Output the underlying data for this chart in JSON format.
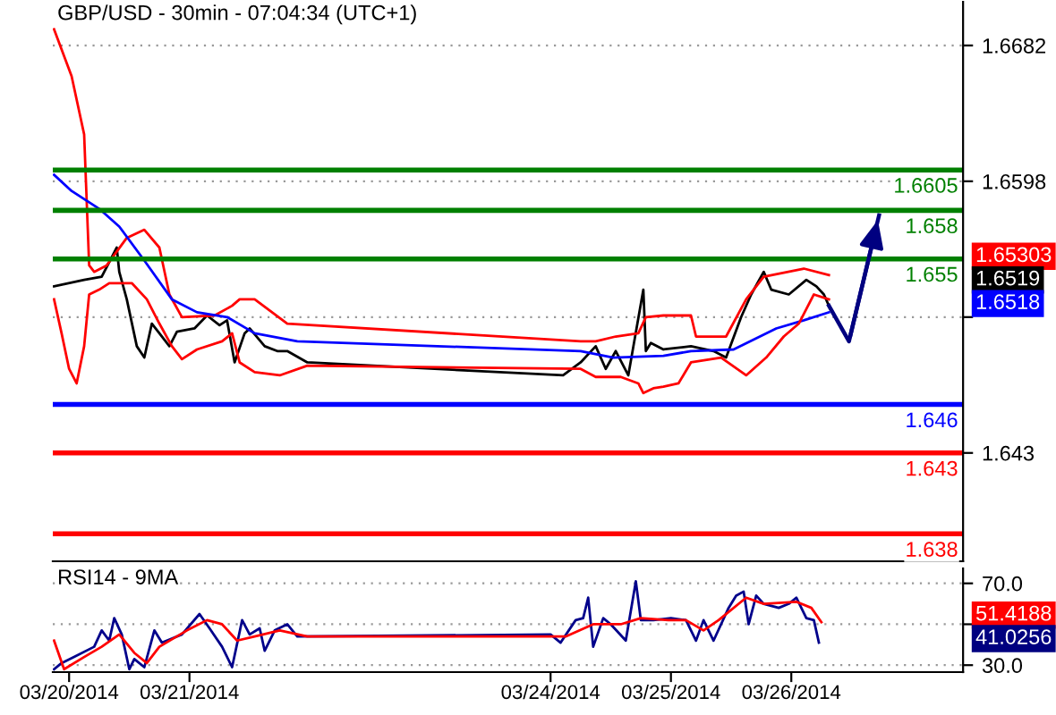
{
  "chart_data": [
    {
      "type": "line",
      "title": "GBP/USD - 30min - 07:04:34 (UTC+1)",
      "tick_labels": "y",
      "grid": "y",
      "xlim": [
        "2014-03-19T20:45",
        "2014-03-27T10:15"
      ],
      "ylim": [
        1.6363,
        1.6709
      ],
      "yticks": [
        1.6682,
        1.6598,
        {
          "value": 1.6514,
          "label": null
        },
        1.643
      ],
      "series": [
        {
          "color": "#000000",
          "x": [
            "2014-03-19T21:00",
            "2014-03-20T03:00",
            "2014-03-20T06:30",
            "2014-03-20T09:30",
            "2014-03-20T10:00",
            "2014-03-20T11:30",
            "2014-03-20T13:30",
            "2014-03-20T15:00",
            "2014-03-20T16:30",
            "2014-03-20T18:00",
            "2014-03-20T20:00",
            "2014-03-20T21:30",
            "2014-03-21T01:00",
            "2014-03-21T03:30",
            "2014-03-21T06:00",
            "2014-03-21T07:30",
            "2014-03-21T09:00",
            "2014-03-21T11:00",
            "2014-03-21T12:00",
            "2014-03-21T15:00",
            "2014-03-21T17:30",
            "2014-03-21T19:30",
            "2014-03-21T23:30",
            "2014-03-24T02:30",
            "2014-03-24T06:00",
            "2014-03-24T09:00",
            "2014-03-24T11:00",
            "2014-03-24T13:00",
            "2014-03-24T15:30",
            "2014-03-24T18:30",
            "2014-03-24T19:00",
            "2014-03-24T20:00",
            "2014-03-24T22:30",
            "2014-03-25T04:00",
            "2014-03-25T08:30",
            "2014-03-25T11:00",
            "2014-03-25T14:00",
            "2014-03-25T16:00",
            "2014-03-25T18:30",
            "2014-03-25T20:00",
            "2014-03-25T23:30",
            "2014-03-26T03:00",
            "2014-03-26T05:00",
            "2014-03-26T06:30",
            "2014-03-26T07:30"
          ],
          "values": [
            1.6533,
            1.6537,
            1.6539,
            1.6557,
            1.6542,
            1.6525,
            1.6496,
            1.6489,
            1.651,
            1.6504,
            1.6496,
            1.6505,
            1.6507,
            1.6515,
            1.6509,
            1.6512,
            1.6486,
            1.6504,
            1.6507,
            1.6496,
            1.6493,
            1.6493,
            1.6486,
            1.6478,
            1.6486,
            1.6496,
            1.6482,
            1.6493,
            1.6478,
            1.6531,
            1.6493,
            1.6498,
            1.6494,
            1.6496,
            1.6493,
            1.6489,
            1.6514,
            1.6528,
            1.6542,
            1.6531,
            1.6528,
            1.6537,
            1.6533,
            1.6528,
            1.6521
          ]
        },
        {
          "color": "#ff0000",
          "x": [
            "2014-03-19T21:00",
            "2014-03-20T00:30",
            "2014-03-20T03:00",
            "2014-03-20T04:00",
            "2014-03-20T05:00",
            "2014-03-20T07:30",
            "2014-03-20T11:30",
            "2014-03-20T15:00",
            "2014-03-20T18:00",
            "2014-03-20T20:00",
            "2014-03-20T22:30",
            "2014-03-21T05:00",
            "2014-03-21T08:30",
            "2014-03-21T10:00",
            "2014-03-21T13:00",
            "2014-03-21T19:30",
            "2014-03-24T06:00",
            "2014-03-24T09:00",
            "2014-03-24T13:00",
            "2014-03-24T17:30",
            "2014-03-24T19:00",
            "2014-03-24T22:30",
            "2014-03-25T04:00",
            "2014-03-25T05:00",
            "2014-03-25T11:00",
            "2014-03-25T15:00",
            "2014-03-25T18:30",
            "2014-03-26T02:30",
            "2014-03-26T07:30"
          ],
          "values": [
            1.6692,
            1.6663,
            1.6627,
            1.6546,
            1.6542,
            1.6546,
            1.6563,
            1.6568,
            1.6557,
            1.6528,
            1.6514,
            1.6515,
            1.6521,
            1.6525,
            1.6525,
            1.651,
            1.6499,
            1.6499,
            1.6502,
            1.6504,
            1.6514,
            1.6515,
            1.6515,
            1.6502,
            1.6502,
            1.6525,
            1.6539,
            1.6544,
            1.654
          ]
        },
        {
          "color": "#0000ff",
          "x": [
            "2014-03-19T21:00",
            "2014-03-20T00:30",
            "2014-03-20T06:00",
            "2014-03-20T10:00",
            "2014-03-20T15:00",
            "2014-03-20T20:30",
            "2014-03-21T01:30",
            "2014-03-21T07:30",
            "2014-03-21T13:00",
            "2014-03-21T21:30",
            "2014-03-24T06:00",
            "2014-03-24T12:30",
            "2014-03-24T22:30",
            "2014-03-25T04:00",
            "2014-03-25T12:30",
            "2014-03-25T21:00",
            "2014-03-26T02:30",
            "2014-03-26T07:30"
          ],
          "values": [
            1.6602,
            1.6592,
            1.6581,
            1.657,
            1.6549,
            1.6525,
            1.6517,
            1.6514,
            1.6504,
            1.6499,
            1.6493,
            1.6489,
            1.649,
            1.6493,
            1.6494,
            1.6507,
            1.6512,
            1.6517
          ]
        },
        {
          "color": "#ff0000",
          "x": [
            "2014-03-19T21:00",
            "2014-03-19T22:30",
            "2014-03-20T00:00",
            "2014-03-20T01:30",
            "2014-03-20T03:00",
            "2014-03-20T04:00",
            "2014-03-20T06:00",
            "2014-03-20T08:00",
            "2014-03-20T12:30",
            "2014-03-20T15:30",
            "2014-03-20T18:00",
            "2014-03-20T20:30",
            "2014-03-20T22:30",
            "2014-03-21T01:30",
            "2014-03-21T06:30",
            "2014-03-21T08:30",
            "2014-03-21T10:00",
            "2014-03-21T13:00",
            "2014-03-21T18:00",
            "2014-03-21T23:30",
            "2014-03-24T06:00",
            "2014-03-24T09:00",
            "2014-03-24T14:00",
            "2014-03-24T17:30",
            "2014-03-24T18:30",
            "2014-03-24T20:30",
            "2014-03-24T22:30",
            "2014-03-25T01:30",
            "2014-03-25T04:00",
            "2014-03-25T10:00",
            "2014-03-25T15:00",
            "2014-03-25T19:00",
            "2014-03-25T22:30",
            "2014-03-26T01:30",
            "2014-03-26T04:30",
            "2014-03-26T07:30"
          ],
          "values": [
            1.6525,
            1.6504,
            1.6482,
            1.6473,
            1.6496,
            1.6528,
            1.6531,
            1.6535,
            1.6535,
            1.6525,
            1.651,
            1.6496,
            1.6488,
            1.6494,
            1.6499,
            1.6504,
            1.6486,
            1.648,
            1.6478,
            1.6484,
            1.6482,
            1.6477,
            1.6477,
            1.6473,
            1.6467,
            1.647,
            1.6471,
            1.6473,
            1.6486,
            1.6489,
            1.6478,
            1.6489,
            1.6502,
            1.651,
            1.6528,
            1.6525
          ]
        },
        {
          "color": "#000080",
          "x": [
            "2014-03-26T07:30",
            "2014-03-26T11:30",
            "2014-03-26T17:30"
          ],
          "values": [
            1.6521,
            1.6499,
            1.6577
          ]
        }
      ],
      "ref_lines": [
        {
          "axis": "y",
          "value": 1.6605,
          "label": "1.6605",
          "color": "#008000"
        },
        {
          "axis": "y",
          "value": 1.658,
          "label": "1.658",
          "color": "#008000"
        },
        {
          "axis": "y",
          "value": 1.655,
          "label": "1.655",
          "color": "#008000"
        },
        {
          "axis": "y",
          "value": 1.646,
          "label": "1.646",
          "color": "#0000ff"
        },
        {
          "axis": "y",
          "value": 1.643,
          "label": "1.643",
          "color": "#ff0000"
        },
        {
          "axis": "y",
          "value": 1.638,
          "label": "1.638",
          "color": "#ff0000"
        }
      ],
      "annotations": [
        "1.65303",
        "1.6519",
        "1.6518"
      ]
    },
    {
      "type": "line",
      "title": "RSI14 - 9MA",
      "grid": "y",
      "xlim": [
        "2014-03-19T20:45",
        "2014-03-27T10:15"
      ],
      "ylim": [
        26.6,
        77.3
      ],
      "xticks": [
        {
          "value": "2014-03-20",
          "label": "03/20/2014"
        },
        {
          "value": "2014-03-21",
          "label": "03/21/2014"
        },
        {
          "value": "2014-03-24",
          "label": "03/24/2014"
        },
        {
          "value": "2014-03-25",
          "label": "03/25/2014"
        },
        {
          "value": "2014-03-26",
          "label": "03/26/2014"
        }
      ],
      "yticks": [
        {
          "value": 70,
          "label": "70.0"
        },
        {
          "value": 50,
          "label": null
        },
        {
          "value": 30,
          "label": "30.0"
        }
      ],
      "series": [
        {
          "color": "#00008b",
          "x": [
            "2014-03-19T21:00",
            "2014-03-19T22:30",
            "2014-03-20T01:00",
            "2014-03-20T05:00",
            "2014-03-20T06:30",
            "2014-03-20T08:00",
            "2014-03-20T09:00",
            "2014-03-20T10:30",
            "2014-03-20T12:00",
            "2014-03-20T13:00",
            "2014-03-20T15:00",
            "2014-03-20T17:00",
            "2014-03-20T18:30",
            "2014-03-20T19:30",
            "2014-03-20T22:30",
            "2014-03-21T02:00",
            "2014-03-21T04:00",
            "2014-03-21T06:30",
            "2014-03-21T08:30",
            "2014-03-21T10:30",
            "2014-03-21T12:00",
            "2014-03-21T14:00",
            "2014-03-21T15:00",
            "2014-03-21T17:00",
            "2014-03-21T19:30",
            "2014-03-21T21:30",
            "2014-03-24T00:00",
            "2014-03-24T02:00",
            "2014-03-24T05:00",
            "2014-03-24T06:30",
            "2014-03-24T07:30",
            "2014-03-24T08:30",
            "2014-03-24T10:30",
            "2014-03-24T12:00",
            "2014-03-24T15:00",
            "2014-03-24T17:00",
            "2014-03-24T18:00",
            "2014-03-24T20:30",
            "2014-03-25T00:00",
            "2014-03-25T03:00",
            "2014-03-25T05:00",
            "2014-03-25T06:30",
            "2014-03-25T08:30",
            "2014-03-25T11:30",
            "2014-03-25T13:00",
            "2014-03-25T14:30",
            "2014-03-25T15:30",
            "2014-03-25T17:00",
            "2014-03-25T18:30",
            "2014-03-25T21:30",
            "2014-03-25T23:30",
            "2014-03-26T01:00",
            "2014-03-26T03:00",
            "2014-03-26T04:30",
            "2014-03-26T05:30"
          ],
          "values": [
            28,
            31,
            34,
            39,
            47,
            42,
            53,
            45,
            28,
            33,
            29,
            47,
            41,
            42,
            45,
            55,
            48,
            39,
            29,
            52,
            45,
            48,
            37,
            47,
            50,
            44,
            45,
            41,
            52,
            53,
            63,
            39,
            53,
            50,
            42,
            71,
            52,
            52,
            53,
            52,
            42,
            52,
            42,
            58,
            64,
            66,
            50,
            64,
            60,
            58,
            60,
            63,
            53,
            52,
            41
          ]
        },
        {
          "color": "#ff0000",
          "x": [
            "2014-03-19T21:00",
            "2014-03-19T23:00",
            "2014-03-20T03:00",
            "2014-03-20T06:30",
            "2014-03-20T10:00",
            "2014-03-20T13:00",
            "2014-03-20T15:30",
            "2014-03-20T18:00",
            "2014-03-20T23:30",
            "2014-03-21T03:30",
            "2014-03-21T06:30",
            "2014-03-21T09:30",
            "2014-03-21T13:00",
            "2014-03-21T18:00",
            "2014-03-21T23:30",
            "2014-03-24T03:00",
            "2014-03-24T08:30",
            "2014-03-24T14:00",
            "2014-03-24T18:00",
            "2014-03-24T23:30",
            "2014-03-25T03:00",
            "2014-03-25T06:30",
            "2014-03-25T09:30",
            "2014-03-25T15:00",
            "2014-03-25T18:30",
            "2014-03-26T01:00",
            "2014-03-26T04:00",
            "2014-03-26T06:00"
          ],
          "values": [
            42,
            28,
            34,
            39,
            45,
            36,
            31,
            39,
            47,
            52,
            50,
            42,
            44,
            47,
            44,
            44,
            50,
            50,
            53,
            52,
            52,
            47,
            52,
            63,
            60,
            61,
            58,
            51
          ]
        }
      ],
      "annotations": [
        "51.4188",
        "41.0256"
      ]
    }
  ]
}
